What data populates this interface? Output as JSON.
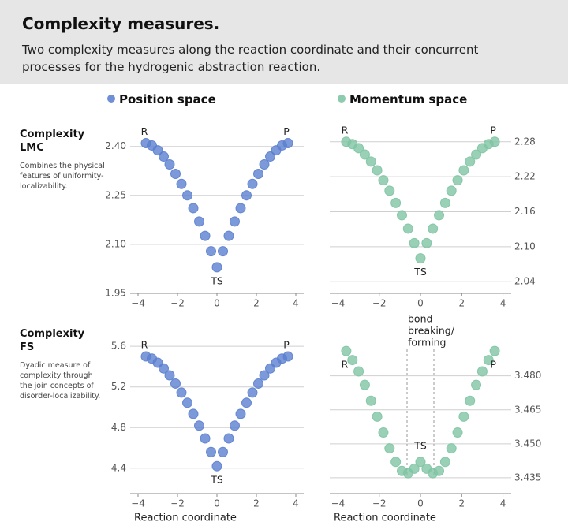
{
  "header": {
    "title": "Complexity measures.",
    "subtitle": "Two complexity measures along the reaction coordinate and their concurrent processes for the hydrogenic abstraction reaction."
  },
  "columns": [
    {
      "label": "Position space",
      "color": "#6f8fd6"
    },
    {
      "label": "Momentum space",
      "color": "#8ccbad"
    }
  ],
  "rows": [
    {
      "label": "Complexity LMC",
      "description": "Combines the physical features of uniformity-localizability."
    },
    {
      "label": "Complexity FS",
      "description": "Dyadic measure of complexity through the join concepts of disorder-localizability."
    }
  ],
  "chart_data": [
    {
      "type": "scatter",
      "color": "#5b7fcf",
      "x": [
        -3.6,
        -3.3,
        -3.0,
        -2.7,
        -2.4,
        -2.1,
        -1.8,
        -1.5,
        -1.2,
        -0.9,
        -0.6,
        -0.3,
        0,
        0.3,
        0.6,
        0.9,
        1.2,
        1.5,
        1.8,
        2.1,
        2.4,
        2.7,
        3.0,
        3.3,
        3.6
      ],
      "values": [
        2.41,
        2.403,
        2.388,
        2.369,
        2.345,
        2.316,
        2.285,
        2.25,
        2.211,
        2.17,
        2.126,
        2.079,
        2.03,
        2.079,
        2.126,
        2.17,
        2.211,
        2.25,
        2.285,
        2.316,
        2.345,
        2.369,
        2.388,
        2.403,
        2.41
      ],
      "xlim": [
        -4.4,
        4.4
      ],
      "ylim": [
        1.95,
        2.45
      ],
      "xticks": [
        {
          "value": -4,
          "label": "−4"
        },
        {
          "value": -2,
          "label": "−2"
        },
        0,
        2,
        4
      ],
      "yticks": [
        1.95,
        {
          "value": 2.1,
          "label": "2.10"
        },
        2.25,
        {
          "value": 2.4,
          "label": "2.40"
        }
      ],
      "grid": true,
      "annotations": [
        "R",
        "P",
        "TS"
      ]
    },
    {
      "type": "scatter",
      "color": "#7fc4a4",
      "x": [
        -3.6,
        -3.3,
        -3.0,
        -2.7,
        -2.4,
        -2.1,
        -1.8,
        -1.5,
        -1.2,
        -0.9,
        -0.6,
        -0.3,
        0,
        0.3,
        0.6,
        0.9,
        1.2,
        1.5,
        1.8,
        2.1,
        2.4,
        2.7,
        3.0,
        3.3,
        3.6
      ],
      "values": [
        2.28,
        2.276,
        2.269,
        2.258,
        2.246,
        2.231,
        2.214,
        2.196,
        2.175,
        2.154,
        2.131,
        2.106,
        2.08,
        2.106,
        2.131,
        2.154,
        2.175,
        2.196,
        2.214,
        2.231,
        2.246,
        2.258,
        2.269,
        2.276,
        2.28
      ],
      "xlim": [
        -4.4,
        4.4
      ],
      "ylim": [
        2.02,
        2.3
      ],
      "xticks": [
        {
          "value": -4,
          "label": "−4"
        },
        {
          "value": -2,
          "label": "−2"
        },
        0,
        2,
        4
      ],
      "yticks": [
        2.04,
        {
          "value": 2.1,
          "label": "2.10"
        },
        2.16,
        2.22,
        2.28
      ],
      "grid": true,
      "annotations": [
        "R",
        "P",
        "TS"
      ]
    },
    {
      "type": "scatter",
      "color": "#5b7fcf",
      "x": [
        -3.6,
        -3.3,
        -3.0,
        -2.7,
        -2.4,
        -2.1,
        -1.8,
        -1.5,
        -1.2,
        -0.9,
        -0.6,
        -0.3,
        0,
        0.3,
        0.6,
        0.9,
        1.2,
        1.5,
        1.8,
        2.1,
        2.4,
        2.7,
        3.0,
        3.3,
        3.6
      ],
      "values": [
        5.5,
        5.479,
        5.438,
        5.382,
        5.314,
        5.233,
        5.144,
        5.044,
        4.935,
        4.819,
        4.693,
        4.559,
        4.42,
        4.559,
        4.693,
        4.819,
        4.935,
        5.044,
        5.144,
        5.233,
        5.314,
        5.382,
        5.438,
        5.479,
        5.5
      ],
      "xlim": [
        -4.4,
        4.4
      ],
      "ylim": [
        4.15,
        5.71
      ],
      "xticks": [
        {
          "value": -4,
          "label": "−4"
        },
        {
          "value": -2,
          "label": "−2"
        },
        0,
        2,
        4
      ],
      "yticks": [
        4.4,
        4.8,
        5.2,
        5.6
      ],
      "grid": true,
      "annotations": [
        "R",
        "P",
        "TS"
      ],
      "xlabel": "Reaction coordinate"
    },
    {
      "type": "scatter",
      "color": "#7fc4a4",
      "x": [
        -3.6,
        -3.3,
        -3.0,
        -2.7,
        -2.4,
        -2.1,
        -1.8,
        -1.5,
        -1.2,
        -0.9,
        -0.6,
        -0.3,
        0,
        0.3,
        0.6,
        0.9,
        1.2,
        1.5,
        1.8,
        2.1,
        2.4,
        2.7,
        3.0,
        3.3,
        3.6
      ],
      "values": [
        3.491,
        3.487,
        3.482,
        3.476,
        3.469,
        3.462,
        3.455,
        3.448,
        3.442,
        3.438,
        3.437,
        3.439,
        3.442,
        3.439,
        3.437,
        3.438,
        3.442,
        3.448,
        3.455,
        3.462,
        3.469,
        3.476,
        3.482,
        3.487,
        3.491
      ],
      "xlim": [
        -4.4,
        4.4
      ],
      "ylim": [
        3.428,
        3.498
      ],
      "xticks": [
        {
          "value": -4,
          "label": "−4"
        },
        {
          "value": -2,
          "label": "−2"
        },
        0,
        2,
        4
      ],
      "yticks": [
        3.435,
        {
          "value": 3.45,
          "label": "3.450"
        },
        3.465,
        {
          "value": 3.48,
          "label": "3.480"
        }
      ],
      "grid": true,
      "annotations": [
        "R",
        "P",
        "TS"
      ],
      "xlabel": "Reaction coordinate",
      "vlines": [
        -0.65,
        0.65
      ],
      "vline_label": [
        "bond",
        "breaking/",
        "forming"
      ]
    }
  ]
}
